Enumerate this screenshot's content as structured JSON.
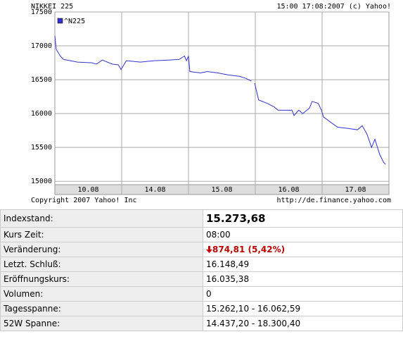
{
  "chart_data": {
    "type": "line",
    "title": "NIKKEI 225",
    "subtitle": "15:00 17:08:2007 (c) Yahoo!",
    "footer_left": "Copyright 2007 Yahoo! Inc",
    "footer_right": "http://de.finance.yahoo.com",
    "categories": [
      "10.08",
      "14.08",
      "15.08",
      "16.08",
      "17.08"
    ],
    "xlim": [
      0,
      5
    ],
    "ylim": [
      14950,
      17500
    ],
    "yticks": [
      15000,
      15500,
      16000,
      16500,
      17000,
      17500
    ],
    "grid": true,
    "legend": "top-left",
    "series": [
      {
        "name": "^N225",
        "color": "#3333cc",
        "x": [
          0,
          0.02,
          0.08,
          0.13,
          0.34,
          0.55,
          0.62,
          0.71,
          0.86,
          0.95,
          0.99,
          1.02,
          1.07,
          1.28,
          1.49,
          1.71,
          1.86,
          1.94,
          1.97,
          2.0,
          2.02,
          2.18,
          2.28,
          2.44,
          2.6,
          2.76,
          2.86,
          2.94,
          2.97,
          2.99,
          3.05,
          3.18,
          3.28,
          3.34,
          3.55,
          3.58,
          3.65,
          3.71,
          3.81,
          3.85,
          3.94,
          3.99,
          4.02,
          4.13,
          4.23,
          4.39,
          4.53,
          4.6,
          4.67,
          4.74,
          4.79,
          4.86,
          4.92,
          4.95
        ],
        "values": [
          17150,
          16950,
          16850,
          16800,
          16760,
          16750,
          16730,
          16790,
          16730,
          16720,
          16650,
          16700,
          16780,
          16760,
          16780,
          16790,
          16800,
          16850,
          16780,
          16850,
          16620,
          16600,
          16620,
          16600,
          16570,
          16550,
          16520,
          16480,
          null,
          16450,
          16200,
          16150,
          16100,
          16050,
          16050,
          15970,
          16050,
          16000,
          16080,
          16180,
          16150,
          16050,
          15950,
          15870,
          15800,
          15780,
          15760,
          15820,
          15700,
          15500,
          15620,
          15400,
          15280,
          15250
        ]
      }
    ]
  },
  "table": {
    "rows": [
      [
        "Indexstand:",
        "15.273,68"
      ],
      [
        "Kurs Zeit:",
        "08:00"
      ],
      [
        "Veränderung:",
        "874,81 (5,42%)"
      ],
      [
        "Letzt. Schluß:",
        "16.148,49"
      ],
      [
        "Eröffnungskurs:",
        "16.035,38"
      ],
      [
        "Volumen:",
        "0"
      ],
      [
        "Tagesspanne:",
        "15.262,10 - 16.062,59"
      ],
      [
        "52W Spanne:",
        "14.437,20 - 18.300,40"
      ]
    ]
  }
}
